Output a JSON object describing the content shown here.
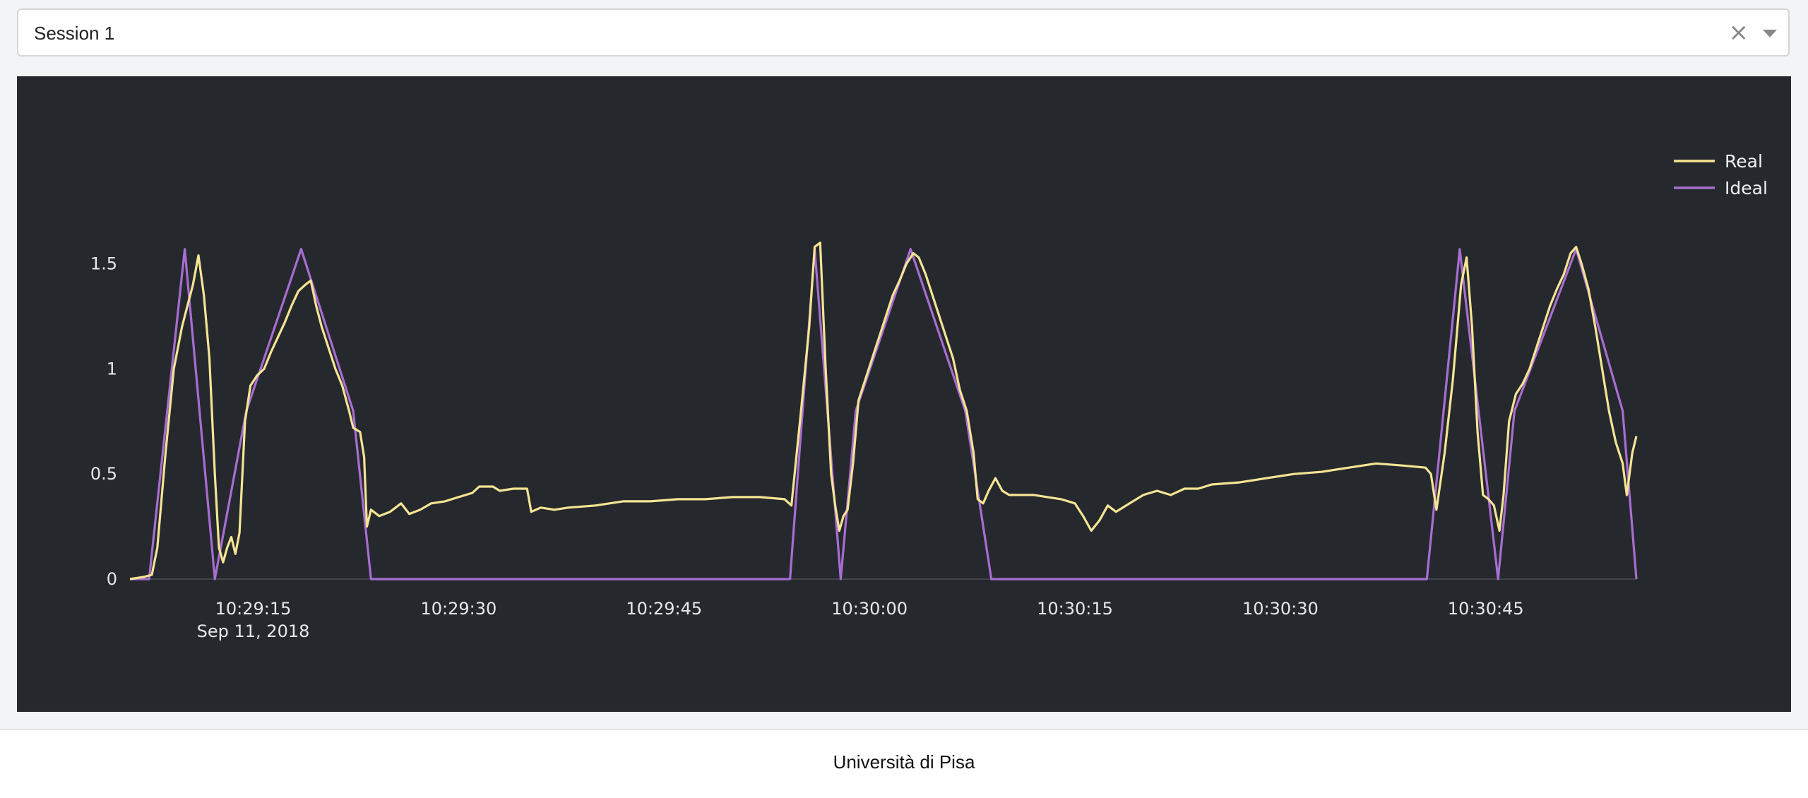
{
  "session_select": {
    "value": "Session 1",
    "clear_icon": "close-icon",
    "dropdown_icon": "chevron-down-icon"
  },
  "footer": {
    "text": "Università di Pisa"
  },
  "chart_data": {
    "type": "line",
    "background": "#25292e",
    "grid": false,
    "legend_position": "top-right",
    "x_unit": "seconds",
    "x_range": [
      "10:29:06",
      "10:30:56"
    ],
    "x_ticks": [
      {
        "t": "10:29:15",
        "label": "10:29:15",
        "sublabel": "Sep 11, 2018"
      },
      {
        "t": "10:29:30",
        "label": "10:29:30"
      },
      {
        "t": "10:29:45",
        "label": "10:29:45"
      },
      {
        "t": "10:30:00",
        "label": "10:30:00"
      },
      {
        "t": "10:30:15",
        "label": "10:30:15"
      },
      {
        "t": "10:30:30",
        "label": "10:30:30"
      },
      {
        "t": "10:30:45",
        "label": "10:30:45"
      }
    ],
    "ylim": [
      0,
      1.72
    ],
    "y_ticks": [
      {
        "v": 0,
        "label": "0"
      },
      {
        "v": 0.5,
        "label": "0.5"
      },
      {
        "v": 1,
        "label": "1"
      },
      {
        "v": 1.5,
        "label": "1.5"
      }
    ],
    "series": [
      {
        "name": "Real",
        "color": "#f5e493",
        "points": [
          [
            "10:29:06.0",
            0.0
          ],
          [
            "10:29:07.0",
            0.01
          ],
          [
            "10:29:07.6",
            0.02
          ],
          [
            "10:29:08.0",
            0.15
          ],
          [
            "10:29:08.6",
            0.6
          ],
          [
            "10:29:09.2",
            1.0
          ],
          [
            "10:29:09.8",
            1.2
          ],
          [
            "10:29:10.2",
            1.3
          ],
          [
            "10:29:10.6",
            1.4
          ],
          [
            "10:29:11.0",
            1.54
          ],
          [
            "10:29:11.4",
            1.35
          ],
          [
            "10:29:11.8",
            1.05
          ],
          [
            "10:29:12.2",
            0.5
          ],
          [
            "10:29:12.5",
            0.15
          ],
          [
            "10:29:12.8",
            0.08
          ],
          [
            "10:29:13.1",
            0.15
          ],
          [
            "10:29:13.4",
            0.2
          ],
          [
            "10:29:13.7",
            0.12
          ],
          [
            "10:29:14.0",
            0.22
          ],
          [
            "10:29:14.4",
            0.75
          ],
          [
            "10:29:14.8",
            0.92
          ],
          [
            "10:29:15.3",
            0.97
          ],
          [
            "10:29:15.8",
            1.0
          ],
          [
            "10:29:16.3",
            1.08
          ],
          [
            "10:29:16.8",
            1.15
          ],
          [
            "10:29:17.3",
            1.22
          ],
          [
            "10:29:17.8",
            1.3
          ],
          [
            "10:29:18.3",
            1.37
          ],
          [
            "10:29:18.8",
            1.4
          ],
          [
            "10:29:19.2",
            1.42
          ],
          [
            "10:29:19.6",
            1.3
          ],
          [
            "10:29:20.0",
            1.2
          ],
          [
            "10:29:20.5",
            1.1
          ],
          [
            "10:29:21.0",
            1.0
          ],
          [
            "10:29:21.5",
            0.92
          ],
          [
            "10:29:22.0",
            0.8
          ],
          [
            "10:29:22.3",
            0.72
          ],
          [
            "10:29:22.8",
            0.7
          ],
          [
            "10:29:23.1",
            0.58
          ],
          [
            "10:29:23.3",
            0.25
          ],
          [
            "10:29:23.6",
            0.33
          ],
          [
            "10:29:24.2",
            0.3
          ],
          [
            "10:29:25.0",
            0.32
          ],
          [
            "10:29:25.8",
            0.36
          ],
          [
            "10:29:26.4",
            0.31
          ],
          [
            "10:29:27.2",
            0.33
          ],
          [
            "10:29:28.0",
            0.36
          ],
          [
            "10:29:29.0",
            0.37
          ],
          [
            "10:29:30.0",
            0.39
          ],
          [
            "10:29:31.0",
            0.41
          ],
          [
            "10:29:31.5",
            0.44
          ],
          [
            "10:29:32.5",
            0.44
          ],
          [
            "10:29:33.0",
            0.42
          ],
          [
            "10:29:34.0",
            0.43
          ],
          [
            "10:29:35.0",
            0.43
          ],
          [
            "10:29:35.3",
            0.32
          ],
          [
            "10:29:36.0",
            0.34
          ],
          [
            "10:29:37.0",
            0.33
          ],
          [
            "10:29:38.0",
            0.34
          ],
          [
            "10:29:40.0",
            0.35
          ],
          [
            "10:29:42.0",
            0.37
          ],
          [
            "10:29:44.0",
            0.37
          ],
          [
            "10:29:46.0",
            0.38
          ],
          [
            "10:29:48.0",
            0.38
          ],
          [
            "10:29:50.0",
            0.39
          ],
          [
            "10:29:52.0",
            0.39
          ],
          [
            "10:29:53.8",
            0.38
          ],
          [
            "10:29:54.3",
            0.35
          ],
          [
            "10:29:55.0",
            0.8
          ],
          [
            "10:29:55.6",
            1.2
          ],
          [
            "10:29:56.0",
            1.58
          ],
          [
            "10:29:56.4",
            1.6
          ],
          [
            "10:29:56.8",
            1.0
          ],
          [
            "10:29:57.2",
            0.5
          ],
          [
            "10:29:57.5",
            0.35
          ],
          [
            "10:29:57.8",
            0.23
          ],
          [
            "10:29:58.1",
            0.3
          ],
          [
            "10:29:58.4",
            0.33
          ],
          [
            "10:29:58.8",
            0.55
          ],
          [
            "10:29:59.2",
            0.85
          ],
          [
            "10:29:59.7",
            0.95
          ],
          [
            "10:30:00.2",
            1.05
          ],
          [
            "10:30:00.7",
            1.15
          ],
          [
            "10:30:01.2",
            1.25
          ],
          [
            "10:30:01.7",
            1.35
          ],
          [
            "10:30:02.2",
            1.42
          ],
          [
            "10:30:02.7",
            1.5
          ],
          [
            "10:30:03.2",
            1.55
          ],
          [
            "10:30:03.6",
            1.53
          ],
          [
            "10:30:04.1",
            1.45
          ],
          [
            "10:30:04.6",
            1.35
          ],
          [
            "10:30:05.1",
            1.25
          ],
          [
            "10:30:05.6",
            1.15
          ],
          [
            "10:30:06.1",
            1.05
          ],
          [
            "10:30:06.6",
            0.9
          ],
          [
            "10:30:07.1",
            0.8
          ],
          [
            "10:30:07.6",
            0.6
          ],
          [
            "10:30:07.9",
            0.38
          ],
          [
            "10:30:08.3",
            0.36
          ],
          [
            "10:30:08.7",
            0.42
          ],
          [
            "10:30:09.2",
            0.48
          ],
          [
            "10:30:09.7",
            0.42
          ],
          [
            "10:30:10.2",
            0.4
          ],
          [
            "10:30:11.0",
            0.4
          ],
          [
            "10:30:12.0",
            0.4
          ],
          [
            "10:30:13.0",
            0.39
          ],
          [
            "10:30:14.0",
            0.38
          ],
          [
            "10:30:15.0",
            0.36
          ],
          [
            "10:30:15.6",
            0.3
          ],
          [
            "10:30:16.2",
            0.23
          ],
          [
            "10:30:16.8",
            0.28
          ],
          [
            "10:30:17.4",
            0.35
          ],
          [
            "10:30:18.0",
            0.32
          ],
          [
            "10:30:19.0",
            0.36
          ],
          [
            "10:30:20.0",
            0.4
          ],
          [
            "10:30:21.0",
            0.42
          ],
          [
            "10:30:22.0",
            0.4
          ],
          [
            "10:30:23.0",
            0.43
          ],
          [
            "10:30:24.0",
            0.43
          ],
          [
            "10:30:25.0",
            0.45
          ],
          [
            "10:30:27.0",
            0.46
          ],
          [
            "10:30:29.0",
            0.48
          ],
          [
            "10:30:31.0",
            0.5
          ],
          [
            "10:30:33.0",
            0.51
          ],
          [
            "10:30:35.0",
            0.53
          ],
          [
            "10:30:37.0",
            0.55
          ],
          [
            "10:30:39.0",
            0.54
          ],
          [
            "10:30:40.6",
            0.53
          ],
          [
            "10:30:41.0",
            0.5
          ],
          [
            "10:30:41.4",
            0.33
          ],
          [
            "10:30:42.0",
            0.6
          ],
          [
            "10:30:42.6",
            0.95
          ],
          [
            "10:30:43.2",
            1.4
          ],
          [
            "10:30:43.6",
            1.53
          ],
          [
            "10:30:44.0",
            1.2
          ],
          [
            "10:30:44.4",
            0.7
          ],
          [
            "10:30:44.8",
            0.4
          ],
          [
            "10:30:45.2",
            0.38
          ],
          [
            "10:30:45.6",
            0.35
          ],
          [
            "10:30:46.0",
            0.23
          ],
          [
            "10:30:46.3",
            0.4
          ],
          [
            "10:30:46.7",
            0.75
          ],
          [
            "10:30:47.2",
            0.88
          ],
          [
            "10:30:47.7",
            0.93
          ],
          [
            "10:30:48.2",
            1.0
          ],
          [
            "10:30:48.7",
            1.1
          ],
          [
            "10:30:49.2",
            1.2
          ],
          [
            "10:30:49.7",
            1.3
          ],
          [
            "10:30:50.2",
            1.38
          ],
          [
            "10:30:50.7",
            1.45
          ],
          [
            "10:30:51.2",
            1.55
          ],
          [
            "10:30:51.6",
            1.58
          ],
          [
            "10:30:52.0",
            1.5
          ],
          [
            "10:30:52.5",
            1.38
          ],
          [
            "10:30:53.0",
            1.2
          ],
          [
            "10:30:53.5",
            1.0
          ],
          [
            "10:30:54.0",
            0.8
          ],
          [
            "10:30:54.5",
            0.65
          ],
          [
            "10:30:55.0",
            0.55
          ],
          [
            "10:30:55.3",
            0.4
          ],
          [
            "10:30:55.7",
            0.6
          ],
          [
            "10:30:56.0",
            0.68
          ]
        ]
      },
      {
        "name": "Ideal",
        "color": "#a86dd1",
        "points": [
          [
            "10:29:06.0",
            0.0
          ],
          [
            "10:29:07.4",
            0.0
          ],
          [
            "10:29:10.0",
            1.57
          ],
          [
            "10:29:12.2",
            0.0
          ],
          [
            "10:29:14.5",
            0.8
          ],
          [
            "10:29:18.5",
            1.57
          ],
          [
            "10:29:22.3",
            0.8
          ],
          [
            "10:29:23.6",
            0.0
          ],
          [
            "10:29:54.2",
            0.0
          ],
          [
            "10:29:56.0",
            1.57
          ],
          [
            "10:29:57.9",
            0.0
          ],
          [
            "10:29:59.0",
            0.8
          ],
          [
            "10:30:03.0",
            1.57
          ],
          [
            "10:30:07.0",
            0.8
          ],
          [
            "10:30:08.9",
            0.0
          ],
          [
            "10:30:40.7",
            0.0
          ],
          [
            "10:30:43.1",
            1.57
          ],
          [
            "10:30:45.9",
            0.0
          ],
          [
            "10:30:47.1",
            0.8
          ],
          [
            "10:30:51.6",
            1.57
          ],
          [
            "10:30:55.0",
            0.8
          ],
          [
            "10:30:56.0",
            0.0
          ]
        ]
      }
    ]
  }
}
